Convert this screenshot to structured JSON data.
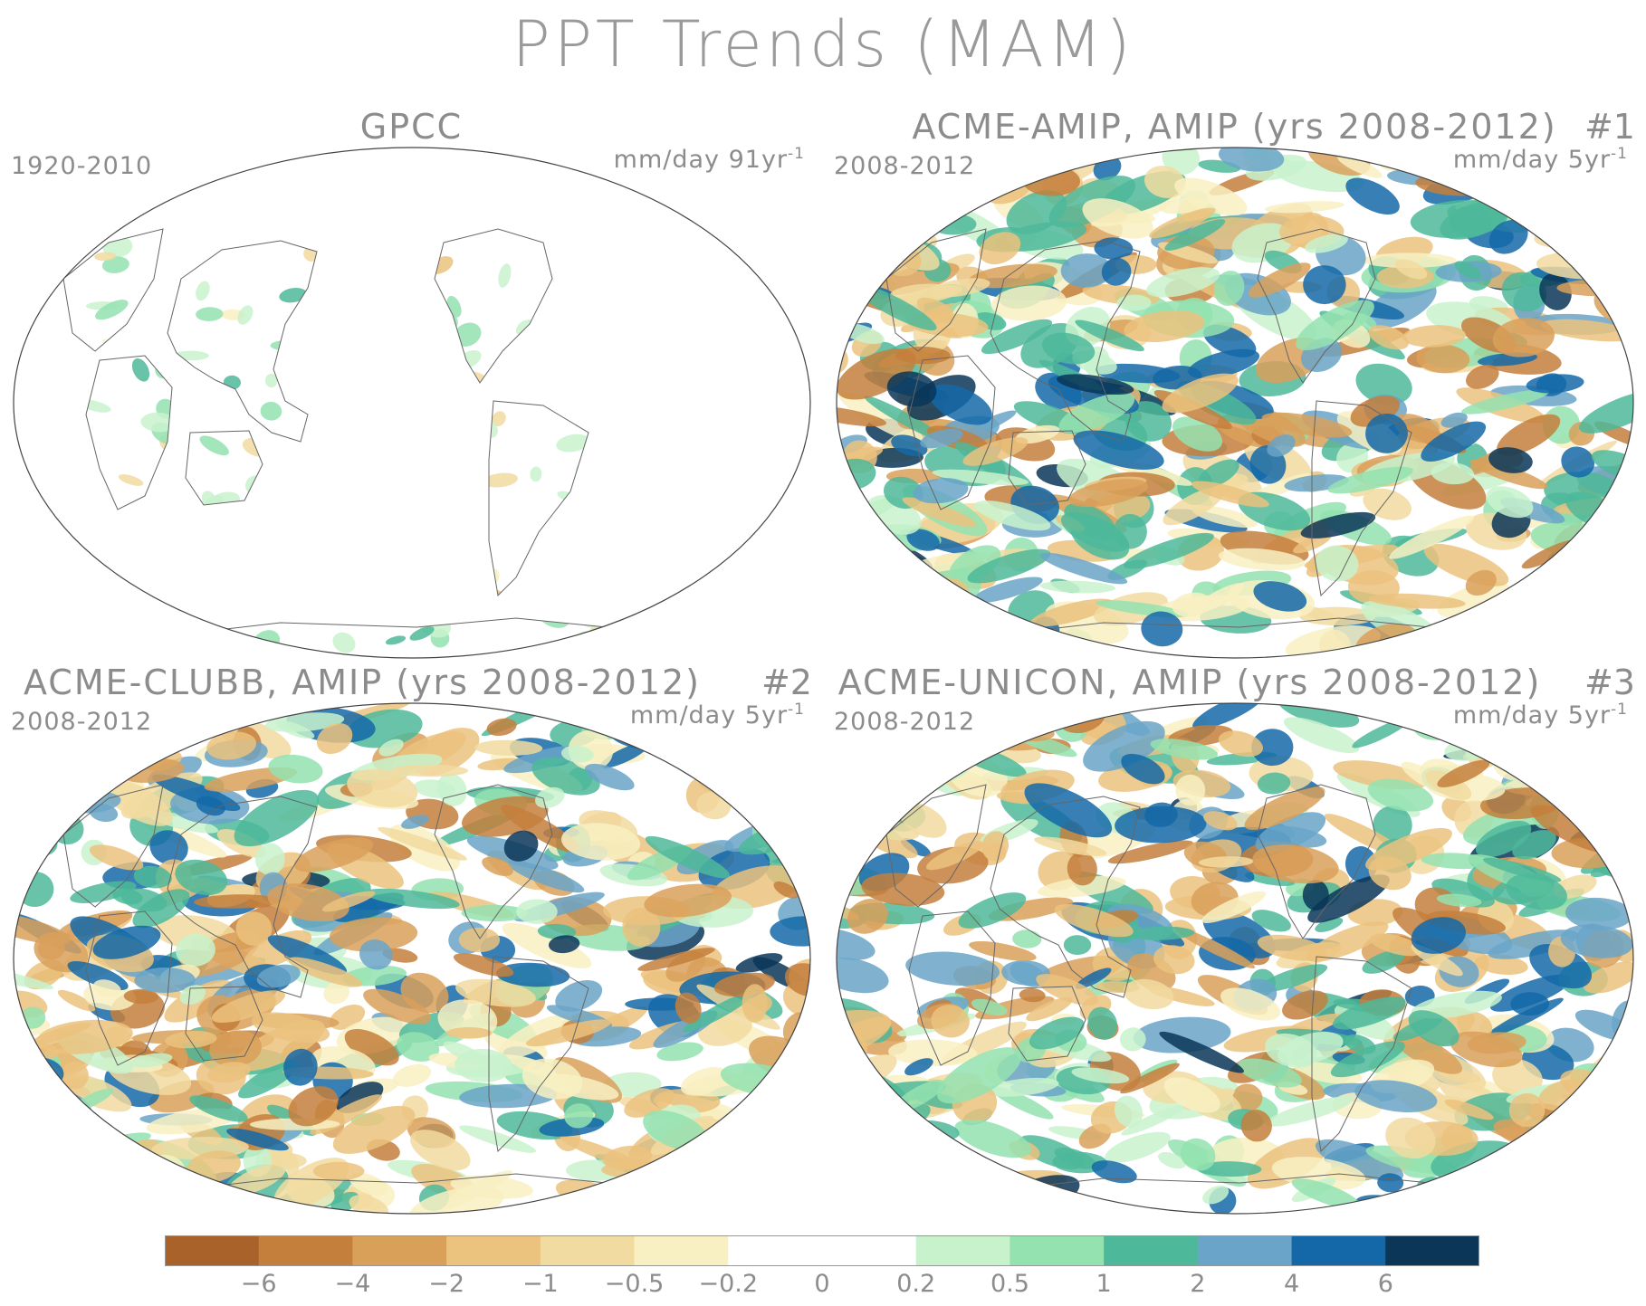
{
  "title": "PPT Trends (MAM)",
  "panels": [
    {
      "id": "gpcc",
      "title": "GPCC",
      "number": "",
      "years": "1920-2010",
      "units": "mm/day 91yr",
      "units_sup": "-1"
    },
    {
      "id": "acme-amip",
      "title": "ACME-AMIP, AMIP (yrs 2008-2012)",
      "number": "#1",
      "years": "2008-2012",
      "units": "mm/day 5yr",
      "units_sup": "-1"
    },
    {
      "id": "acme-clubb",
      "title": "ACME-CLUBB, AMIP (yrs 2008-2012)",
      "number": "#2",
      "years": "2008-2012",
      "units": "mm/day 5yr",
      "units_sup": "-1"
    },
    {
      "id": "acme-unicon",
      "title": "ACME-UNICON, AMIP (yrs 2008-2012)",
      "number": "#3",
      "years": "2008-2012",
      "units": "mm/day 5yr",
      "units_sup": "-1"
    }
  ],
  "colorbar": {
    "labels": [
      "-6",
      "-4",
      "-2",
      "-1",
      "-0.5",
      "-0.2",
      "0",
      "0.2",
      "0.5",
      "1",
      "2",
      "4",
      "6"
    ],
    "colors": [
      "#a8622a",
      "#c47f3c",
      "#d9a05a",
      "#ebc27e",
      "#f2dba0",
      "#f8f0c2",
      "#ffffff",
      "#ffffff",
      "#c8f2cc",
      "#94e2b0",
      "#4eb89a",
      "#6aa4c8",
      "#1468a8",
      "#0b3658"
    ]
  }
}
